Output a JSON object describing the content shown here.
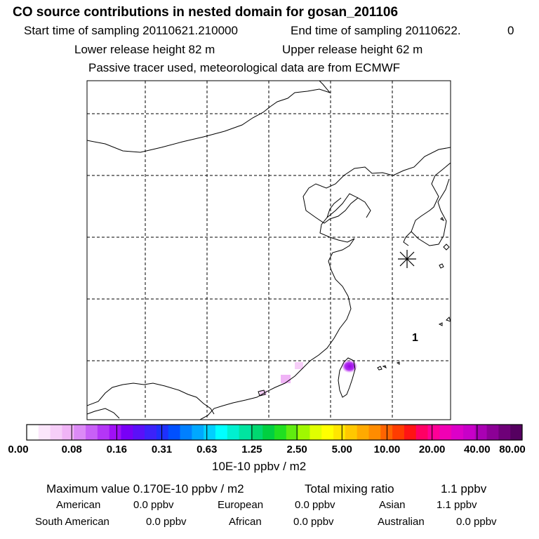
{
  "header": {
    "title": "CO  source contributions in nested domain for gosan_201106",
    "start_label": "Start time of sampling 20110621.210000",
    "end_label": "End time of sampling 20110622.",
    "end_value": "0",
    "lower_label": "Lower release height   82 m",
    "upper_label": "Upper release height   62 m",
    "tracer_line": "Passive tracer used, meteorological data are from ECMWF"
  },
  "map": {
    "site_marker_icon": "asterisk-site-marker",
    "label_one": "1",
    "hotspot_color": "#a000e0"
  },
  "colorbar": {
    "unit": "10E-10 ppbv / m2",
    "labels": [
      "0.00",
      "0.08",
      "0.16",
      "0.31",
      "0.63",
      "1.25",
      "2.50",
      "5.00",
      "10.00",
      "20.00",
      "40.00",
      "80.00"
    ],
    "colors": [
      "#ffffff",
      "#fbe6fb",
      "#f6cef8",
      "#f0b4f6",
      "#dc8af6",
      "#c860f6",
      "#b436f6",
      "#a010f6",
      "#7800f6",
      "#5a10f8",
      "#3c22fa",
      "#1e30fc",
      "#0050ff",
      "#0080ff",
      "#00a8ff",
      "#00d0ff",
      "#00ffff",
      "#00f0d0",
      "#00e4a0",
      "#00d870",
      "#00d040",
      "#20e020",
      "#60ec10",
      "#a0f800",
      "#e0ff00",
      "#ffff00",
      "#ffe600",
      "#ffc800",
      "#ffaa00",
      "#ff8c00",
      "#ff6400",
      "#ff3c00",
      "#ff1414",
      "#ff0064",
      "#ff0096",
      "#f000b4",
      "#dc00c8",
      "#c800c8",
      "#aa00b4",
      "#8c0096",
      "#6e0078",
      "#550060"
    ]
  },
  "footer": {
    "max_label": "Maximum value  0.170E-10 ppbv / m2",
    "total_label": "Total mixing ratio",
    "total_value": "1.1 ppbv",
    "american_label": "American",
    "american_value": "0.0 ppbv",
    "european_label": "European",
    "european_value": "0.0 ppbv",
    "asian_label": "Asian",
    "asian_value": "1.1 ppbv",
    "south_american_label": "South American",
    "south_american_value": "0.0 ppbv",
    "african_label": "African",
    "african_value": "0.0 ppbv",
    "australian_label": "Australian",
    "australian_value": "0.0 ppbv"
  }
}
